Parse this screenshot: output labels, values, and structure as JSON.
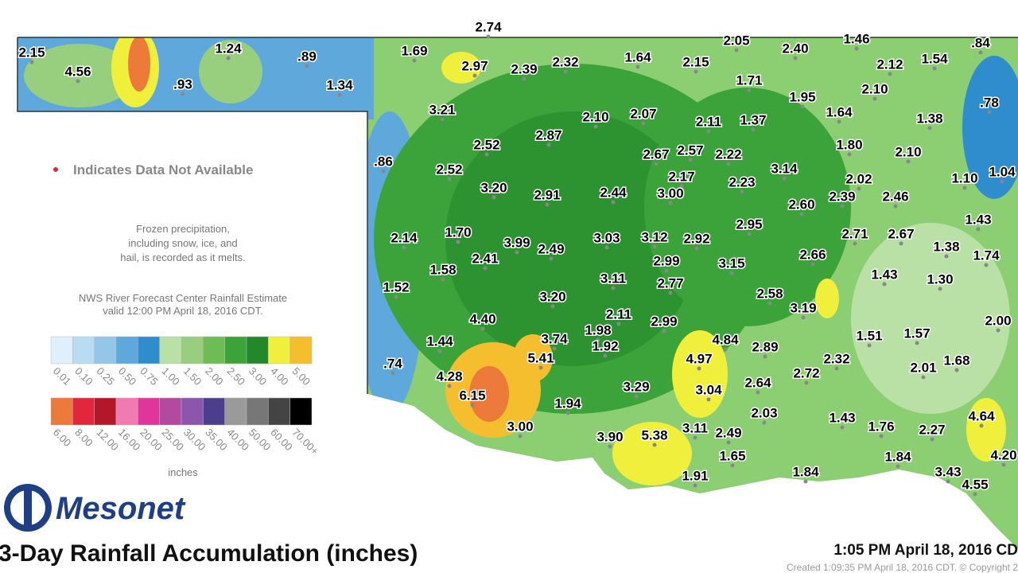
{
  "map": {
    "title": "3-Day Rainfall Accumulation (inches)",
    "logo": "Mesonet",
    "timestamp": "1:05 PM April 18, 2016 CD",
    "created": "Created 1:09:35 PM April 18, 2016 CDT. © Copyright 2",
    "missing_note": "Indicates Data Not Available",
    "frozen_note": [
      "Frozen precipitation,",
      "including snow, ice, and",
      "hail, is recorded as it melts."
    ],
    "source_note": [
      "NWS River Forecast Center Rainfall Estimate",
      "valid 12:00 PM April 18, 2016 CDT."
    ],
    "legend_unit": "inches",
    "legend_rows": [
      [
        {
          "label": "0.01",
          "color": "#dff0fb"
        },
        {
          "label": "0.10",
          "color": "#b9dcf2"
        },
        {
          "label": "0.25",
          "color": "#94c6ea"
        },
        {
          "label": "0.50",
          "color": "#5fa8dc"
        },
        {
          "label": "0.75",
          "color": "#2f8ccd"
        },
        {
          "label": "1.00",
          "color": "#b9e0a5"
        },
        {
          "label": "1.50",
          "color": "#97cf7e"
        },
        {
          "label": "2.00",
          "color": "#6fbb55"
        },
        {
          "label": "2.50",
          "color": "#3ca33b"
        },
        {
          "label": "3.00",
          "color": "#22882a"
        },
        {
          "label": "4.00",
          "color": "#f0ef3c"
        },
        {
          "label": "5.00",
          "color": "#f5be2f"
        }
      ],
      [
        {
          "label": "6.00",
          "color": "#ec7a3a"
        },
        {
          "label": "8.00",
          "color": "#e0273b"
        },
        {
          "label": "12.00",
          "color": "#b21829"
        },
        {
          "label": "16.00",
          "color": "#f07bb0"
        },
        {
          "label": "20.00",
          "color": "#e0359a"
        },
        {
          "label": "25.00",
          "color": "#b44aa0"
        },
        {
          "label": "30.00",
          "color": "#8c56ad"
        },
        {
          "label": "35.00",
          "color": "#4b3e8e"
        },
        {
          "label": "40.00",
          "color": "#9a9a9a"
        },
        {
          "label": "50.00",
          "color": "#777777"
        },
        {
          "label": "60.00",
          "color": "#444444"
        },
        {
          "label": "70.00+",
          "color": "#000000"
        }
      ]
    ],
    "stations": [
      "2.15",
      "4.56",
      ".93",
      "1.24",
      ".89",
      "1.34",
      "1.69",
      "2.74",
      "2.97",
      "2.39",
      "2.32",
      "1.64",
      "2.15",
      "2.05",
      "2.40",
      "1.46",
      ".84",
      "2.12",
      "1.54",
      "1.71",
      "2.10",
      ".78",
      "1.95",
      "3.21",
      "2.10",
      "2.07",
      "2.11",
      "1.37",
      "1.64",
      "1.38",
      "2.52",
      "2.87",
      "2.67",
      "2.57",
      "2.22",
      "1.80",
      "2.10",
      ".86",
      "2.52",
      "3.14",
      "2.17",
      "2.02",
      "1.10",
      "1.04",
      "2.23",
      "3.20",
      "2.91",
      "2.44",
      "3.00",
      "2.39",
      "2.46",
      "2.60",
      "1.43",
      "2.95",
      "1.70",
      "2.14",
      "3.03",
      "3.12",
      "2.92",
      "2.71",
      "2.67",
      "3.99",
      "2.49",
      "2.41",
      "1.38",
      "1.74",
      "2.66",
      "2.99",
      "3.15",
      "1.58",
      "3.11",
      "2.77",
      "1.43",
      "1.30",
      "1.52",
      "2.58",
      "3.20",
      "3.19",
      "2.11",
      "4.40",
      "2.99",
      "1.98",
      "2.00",
      "1.51",
      "1.57",
      "3.74",
      "4.84",
      "1.44",
      "1.92",
      "2.89",
      "5.41",
      "4.97",
      "2.32",
      "1.68",
      ".74",
      "2.01",
      "2.72",
      "4.28",
      "2.64",
      "3.29",
      "3.04",
      "6.15",
      "1.94",
      "2.03",
      "1.43",
      "4.64",
      "3.00",
      "1.76",
      "2.27",
      "3.11",
      "5.38",
      "3.90",
      "2.49",
      "4.20",
      "1.84",
      "1.65",
      "3.43",
      "1.84",
      "1.91",
      "4.55"
    ]
  }
}
